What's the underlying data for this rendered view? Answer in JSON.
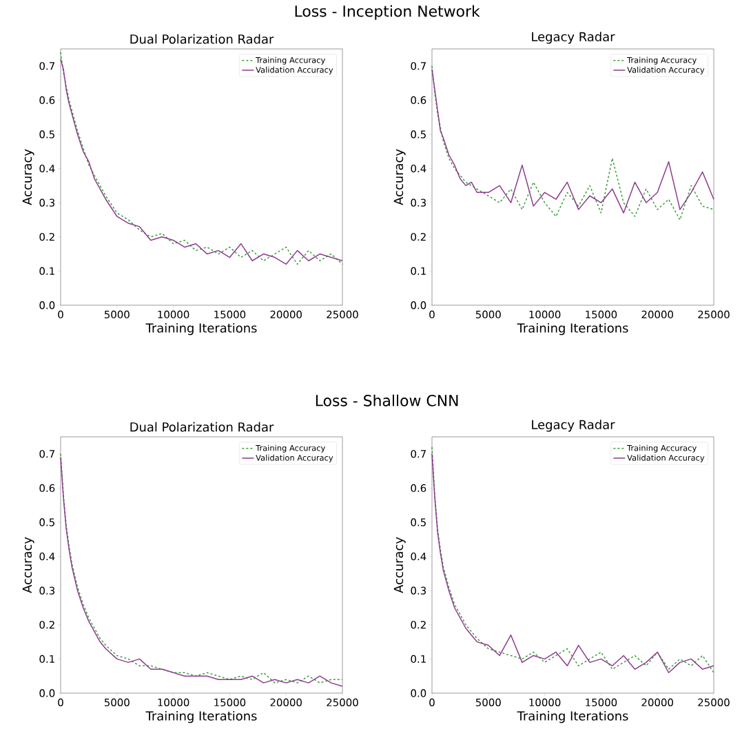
{
  "chart_data": [
    {
      "type": "line",
      "title": "Loss - Inception Network",
      "subtitle": "Dual Polarization Radar",
      "xlabel": "Training Iterations",
      "ylabel": "Accuracy",
      "x": [
        0,
        250,
        500,
        750,
        1000,
        1500,
        2000,
        2500,
        3000,
        3500,
        4000,
        5000,
        6000,
        7000,
        8000,
        9000,
        10000,
        11000,
        12000,
        13000,
        14000,
        15000,
        16000,
        17000,
        18000,
        19000,
        20000,
        21000,
        22000,
        23000,
        24000,
        25000
      ],
      "series": [
        {
          "name": "Training Accuracy",
          "color": "#3a9e3a",
          "line_style": "dashed",
          "values": [
            0.74,
            0.68,
            0.64,
            0.6,
            0.57,
            0.51,
            0.46,
            0.41,
            0.38,
            0.35,
            0.32,
            0.27,
            0.25,
            0.22,
            0.2,
            0.21,
            0.18,
            0.19,
            0.16,
            0.17,
            0.15,
            0.17,
            0.14,
            0.16,
            0.13,
            0.15,
            0.17,
            0.12,
            0.16,
            0.13,
            0.15,
            0.12
          ]
        },
        {
          "name": "Validation Accuracy",
          "color": "#8e3a8e",
          "line_style": "solid",
          "values": [
            0.72,
            0.69,
            0.63,
            0.59,
            0.56,
            0.5,
            0.45,
            0.42,
            0.37,
            0.34,
            0.31,
            0.26,
            0.24,
            0.23,
            0.19,
            0.2,
            0.19,
            0.17,
            0.18,
            0.15,
            0.16,
            0.14,
            0.18,
            0.13,
            0.15,
            0.14,
            0.12,
            0.16,
            0.13,
            0.15,
            0.14,
            0.13
          ]
        }
      ],
      "xlim": [
        0,
        25000
      ],
      "xticks": [
        0,
        5000,
        10000,
        15000,
        20000,
        25000
      ],
      "ylim": [
        0,
        0.75
      ],
      "yticks": [
        {
          "value": 0,
          "label": "0.0"
        },
        {
          "value": 0.1,
          "label": "0.1"
        },
        {
          "value": 0.2,
          "label": "0.2"
        },
        {
          "value": 0.3,
          "label": "0.3"
        },
        {
          "value": 0.4,
          "label": "0.4"
        },
        {
          "value": 0.5,
          "label": "0.5"
        },
        {
          "value": 0.6,
          "label": "0.6"
        },
        {
          "value": 0.7,
          "label": "0.7"
        }
      ],
      "legend": "top right",
      "marker": "none",
      "grid": false
    },
    {
      "type": "line",
      "subtitle": "Legacy Radar",
      "xlabel": "Training Iterations",
      "ylabel": "Accuracy",
      "x": [
        0,
        250,
        500,
        750,
        1000,
        1500,
        2000,
        2500,
        3000,
        3500,
        4000,
        5000,
        6000,
        7000,
        8000,
        9000,
        10000,
        11000,
        12000,
        13000,
        14000,
        15000,
        16000,
        17000,
        18000,
        19000,
        20000,
        21000,
        22000,
        23000,
        24000,
        25000
      ],
      "series": [
        {
          "name": "Training Accuracy",
          "color": "#3a9e3a",
          "line_style": "dashed",
          "values": [
            0.7,
            0.62,
            0.56,
            0.52,
            0.48,
            0.43,
            0.4,
            0.38,
            0.36,
            0.35,
            0.34,
            0.32,
            0.3,
            0.34,
            0.28,
            0.36,
            0.3,
            0.26,
            0.33,
            0.29,
            0.35,
            0.27,
            0.43,
            0.3,
            0.26,
            0.34,
            0.28,
            0.31,
            0.25,
            0.35,
            0.29,
            0.28
          ]
        },
        {
          "name": "Validation Accuracy",
          "color": "#8e3a8e",
          "line_style": "solid",
          "values": [
            0.69,
            0.63,
            0.57,
            0.51,
            0.49,
            0.44,
            0.41,
            0.37,
            0.35,
            0.36,
            0.33,
            0.33,
            0.35,
            0.3,
            0.41,
            0.29,
            0.33,
            0.31,
            0.36,
            0.28,
            0.32,
            0.3,
            0.34,
            0.27,
            0.36,
            0.3,
            0.33,
            0.42,
            0.28,
            0.33,
            0.39,
            0.31
          ]
        }
      ],
      "xlim": [
        0,
        25000
      ],
      "xticks": [
        0,
        5000,
        10000,
        15000,
        20000,
        25000
      ],
      "ylim": [
        0,
        0.75
      ],
      "yticks": [
        {
          "value": 0,
          "label": "0.0"
        },
        {
          "value": 0.1,
          "label": "0.1"
        },
        {
          "value": 0.2,
          "label": "0.2"
        },
        {
          "value": 0.3,
          "label": "0.3"
        },
        {
          "value": 0.4,
          "label": "0.4"
        },
        {
          "value": 0.5,
          "label": "0.5"
        },
        {
          "value": 0.6,
          "label": "0.6"
        },
        {
          "value": 0.7,
          "label": "0.7"
        }
      ],
      "legend": "top right",
      "marker": "none",
      "grid": false
    },
    {
      "type": "line",
      "title": "Loss - Shallow CNN",
      "subtitle": "Dual Polarization Radar",
      "xlabel": "Training Iterations",
      "ylabel": "Accuracy",
      "x": [
        0,
        250,
        500,
        750,
        1000,
        1500,
        2000,
        2500,
        3000,
        3500,
        4000,
        5000,
        6000,
        7000,
        8000,
        9000,
        10000,
        11000,
        12000,
        13000,
        14000,
        15000,
        16000,
        17000,
        18000,
        19000,
        20000,
        21000,
        22000,
        23000,
        24000,
        25000
      ],
      "series": [
        {
          "name": "Training Accuracy",
          "color": "#3a9e3a",
          "line_style": "dashed",
          "values": [
            0.7,
            0.58,
            0.49,
            0.43,
            0.38,
            0.31,
            0.26,
            0.22,
            0.19,
            0.16,
            0.14,
            0.11,
            0.1,
            0.08,
            0.08,
            0.07,
            0.06,
            0.06,
            0.05,
            0.06,
            0.05,
            0.04,
            0.05,
            0.04,
            0.06,
            0.03,
            0.04,
            0.03,
            0.05,
            0.03,
            0.04,
            0.04
          ]
        },
        {
          "name": "Validation Accuracy",
          "color": "#8e3a8e",
          "line_style": "solid",
          "values": [
            0.69,
            0.57,
            0.48,
            0.42,
            0.37,
            0.3,
            0.25,
            0.21,
            0.18,
            0.15,
            0.13,
            0.1,
            0.09,
            0.1,
            0.07,
            0.07,
            0.06,
            0.05,
            0.05,
            0.05,
            0.04,
            0.04,
            0.04,
            0.05,
            0.03,
            0.04,
            0.03,
            0.04,
            0.03,
            0.05,
            0.03,
            0.02
          ]
        }
      ],
      "xlim": [
        0,
        25000
      ],
      "xticks": [
        0,
        5000,
        10000,
        15000,
        20000,
        25000
      ],
      "ylim": [
        0,
        0.75
      ],
      "yticks": [
        {
          "value": 0,
          "label": "0.0"
        },
        {
          "value": 0.1,
          "label": "0.1"
        },
        {
          "value": 0.2,
          "label": "0.2"
        },
        {
          "value": 0.3,
          "label": "0.3"
        },
        {
          "value": 0.4,
          "label": "0.4"
        },
        {
          "value": 0.5,
          "label": "0.5"
        },
        {
          "value": 0.6,
          "label": "0.6"
        },
        {
          "value": 0.7,
          "label": "0.7"
        }
      ],
      "legend": "top right",
      "marker": "none",
      "grid": false
    },
    {
      "type": "line",
      "subtitle": "Legacy Radar",
      "xlabel": "Training Iterations",
      "ylabel": "Accuracy",
      "x": [
        0,
        250,
        500,
        750,
        1000,
        1500,
        2000,
        2500,
        3000,
        3500,
        4000,
        5000,
        6000,
        7000,
        8000,
        9000,
        10000,
        11000,
        12000,
        13000,
        14000,
        15000,
        16000,
        17000,
        18000,
        19000,
        20000,
        21000,
        22000,
        23000,
        24000,
        25000
      ],
      "series": [
        {
          "name": "Training Accuracy",
          "color": "#3a9e3a",
          "line_style": "dashed",
          "values": [
            0.72,
            0.58,
            0.48,
            0.42,
            0.37,
            0.31,
            0.26,
            0.23,
            0.2,
            0.18,
            0.16,
            0.13,
            0.12,
            0.11,
            0.1,
            0.12,
            0.09,
            0.11,
            0.13,
            0.08,
            0.1,
            0.12,
            0.07,
            0.09,
            0.11,
            0.08,
            0.12,
            0.07,
            0.1,
            0.08,
            0.11,
            0.06
          ]
        },
        {
          "name": "Validation Accuracy",
          "color": "#8e3a8e",
          "line_style": "solid",
          "values": [
            0.7,
            0.57,
            0.47,
            0.41,
            0.36,
            0.3,
            0.25,
            0.22,
            0.19,
            0.17,
            0.15,
            0.14,
            0.11,
            0.17,
            0.09,
            0.11,
            0.1,
            0.12,
            0.08,
            0.14,
            0.09,
            0.1,
            0.08,
            0.11,
            0.07,
            0.09,
            0.12,
            0.06,
            0.09,
            0.1,
            0.07,
            0.08
          ]
        }
      ],
      "xlim": [
        0,
        25000
      ],
      "xticks": [
        0,
        5000,
        10000,
        15000,
        20000,
        25000
      ],
      "ylim": [
        0,
        0.75
      ],
      "yticks": [
        {
          "value": 0,
          "label": "0.0"
        },
        {
          "value": 0.1,
          "label": "0.1"
        },
        {
          "value": 0.2,
          "label": "0.2"
        },
        {
          "value": 0.3,
          "label": "0.3"
        },
        {
          "value": 0.4,
          "label": "0.4"
        },
        {
          "value": 0.5,
          "label": "0.5"
        },
        {
          "value": 0.6,
          "label": "0.6"
        },
        {
          "value": 0.7,
          "label": "0.7"
        }
      ],
      "legend": "top right",
      "marker": "none",
      "grid": false
    }
  ]
}
